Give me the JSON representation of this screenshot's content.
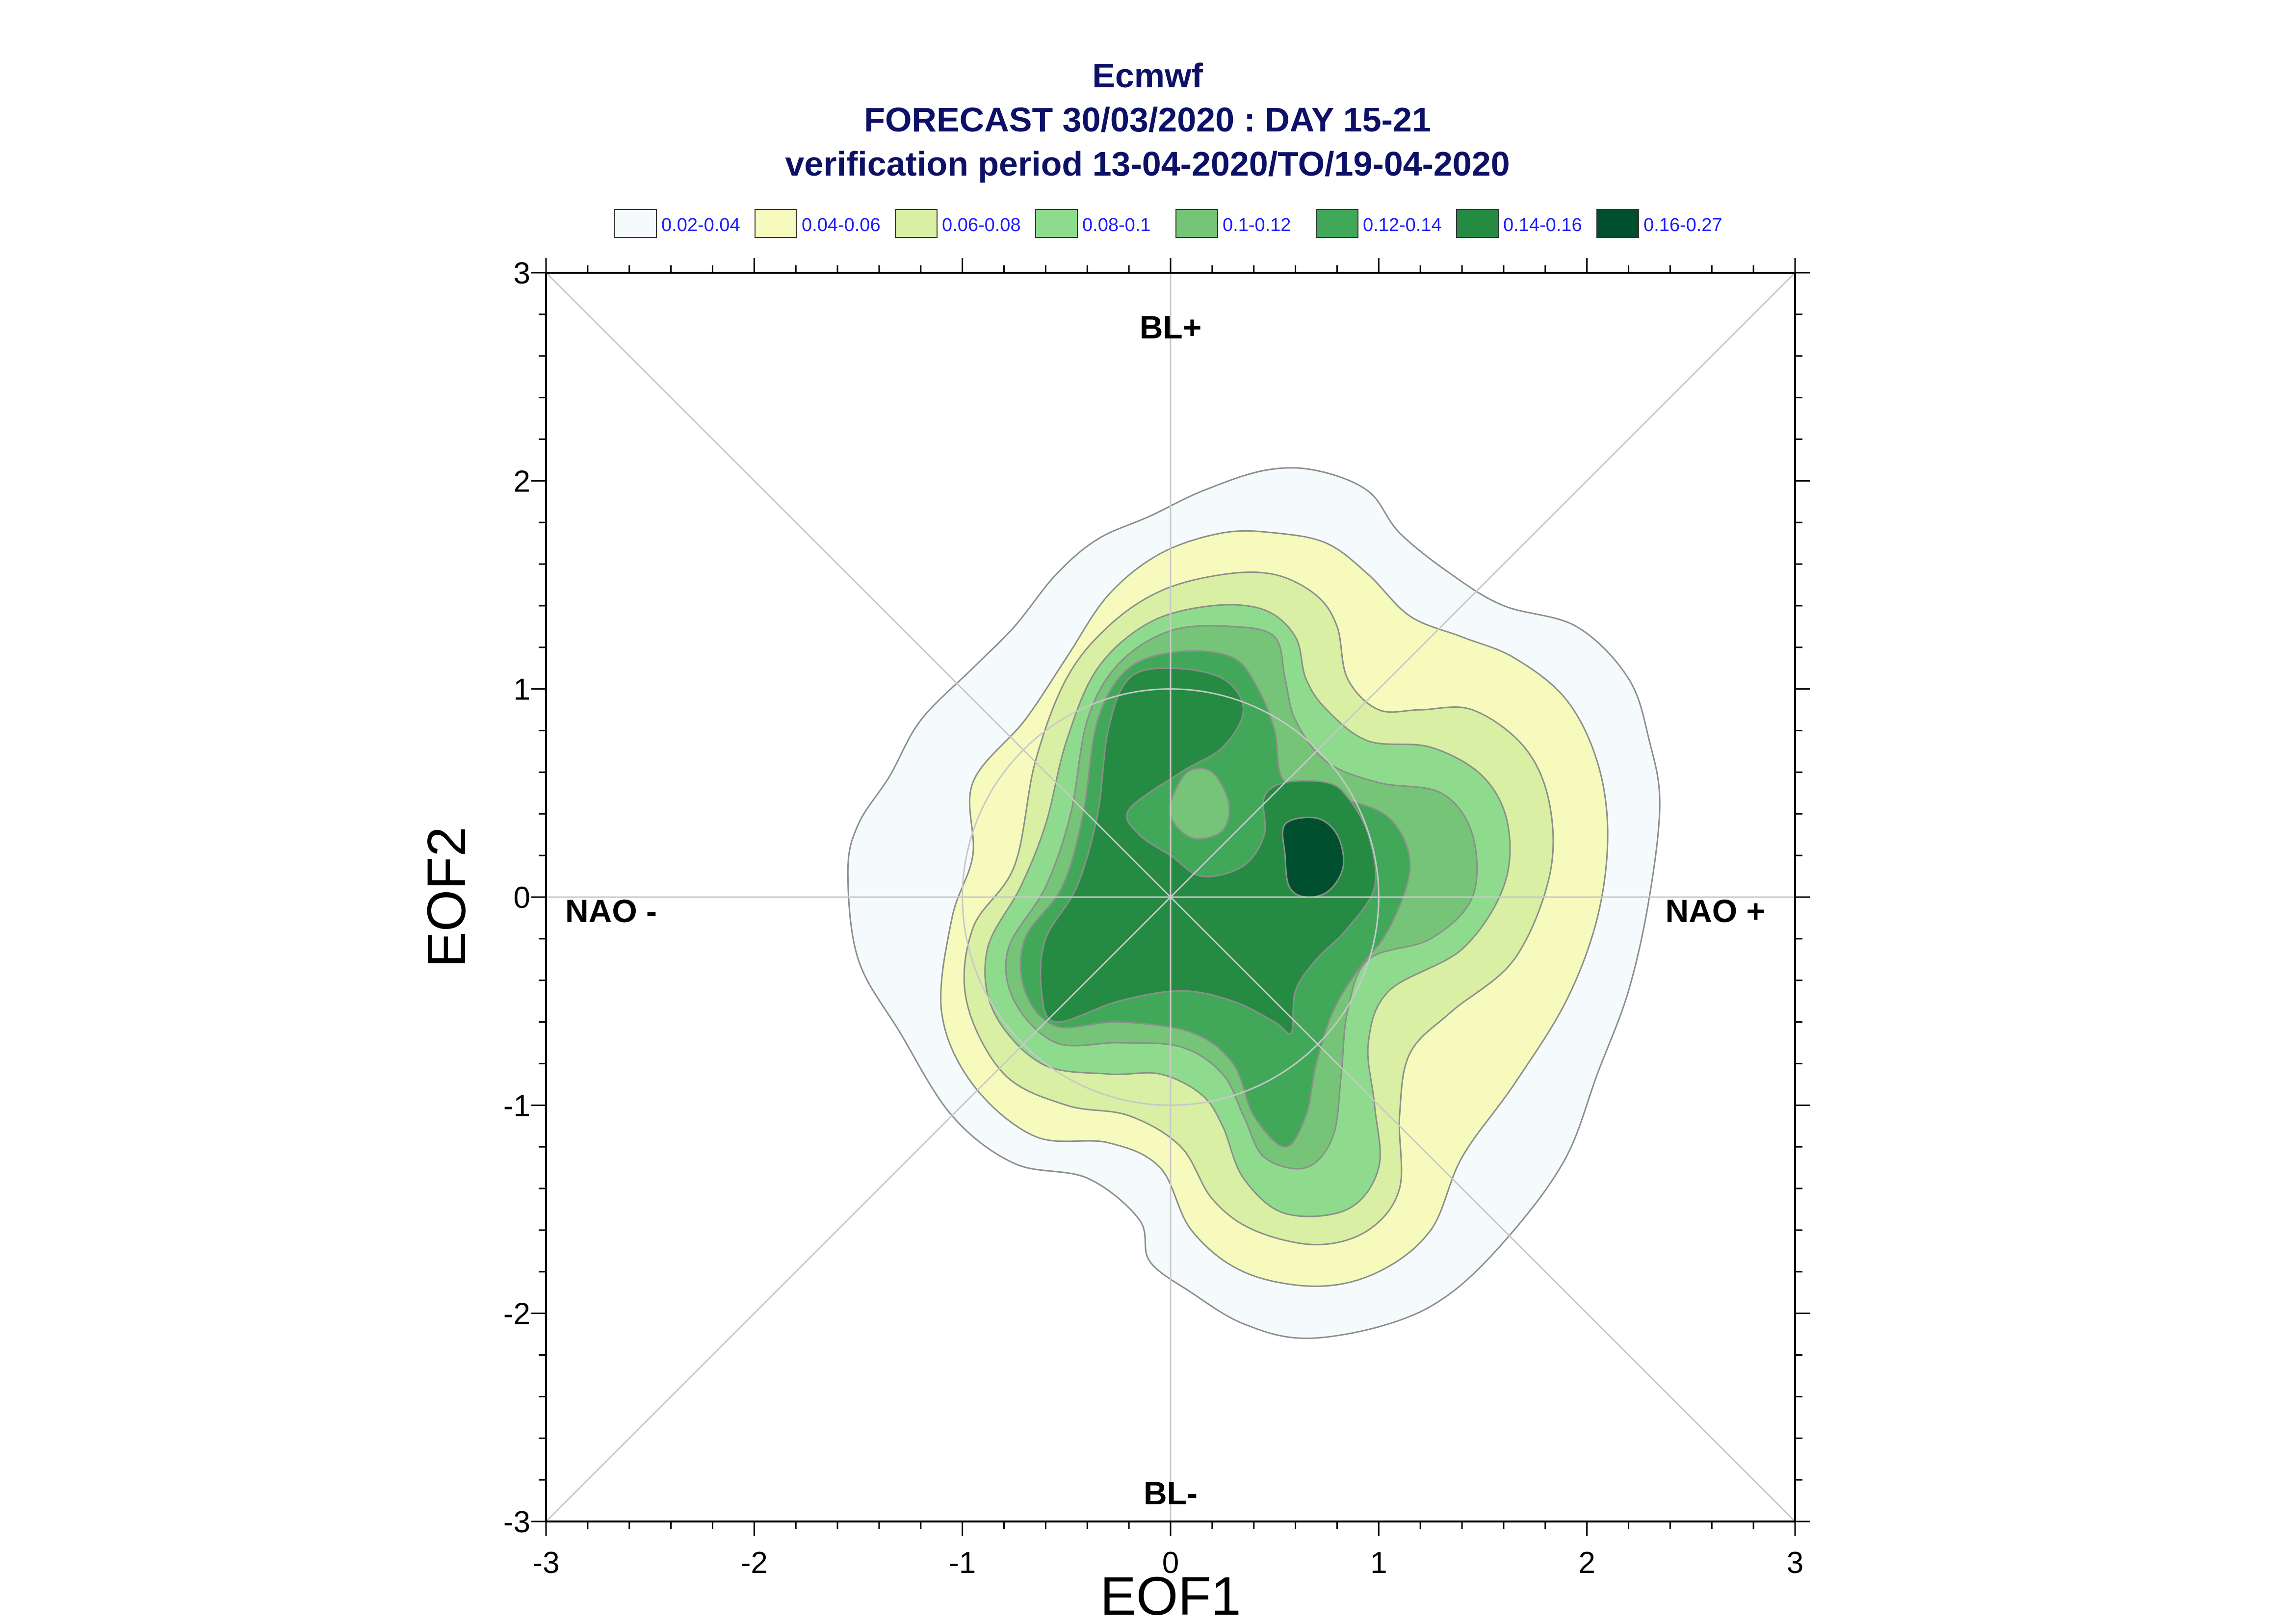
{
  "chart_data": {
    "type": "contour",
    "title": "Ecmwf",
    "subtitle_1": "FORECAST 30/03/2020 : DAY 15-21",
    "subtitle_2": "verification period 13-04-2020/TO/19-04-2020",
    "xlabel": "EOF1",
    "ylabel": "EOF2",
    "xlim": [
      -3,
      3
    ],
    "ylim": [
      -3,
      3
    ],
    "x_ticks": [
      "-3",
      "-2",
      "-1",
      "0",
      "1",
      "2",
      "3"
    ],
    "y_ticks": [
      "3",
      "2",
      "1",
      "0",
      "-1",
      "-2",
      "-3"
    ],
    "grid": false,
    "legend_position": "top",
    "regimes": {
      "top": "BL+",
      "bottom": "BL-",
      "left": "NAO -",
      "right": "NAO +"
    },
    "levels": [
      {
        "label": "0.02-0.04",
        "color": "#f5fafc"
      },
      {
        "label": "0.04-0.06",
        "color": "#f6fbbd"
      },
      {
        "label": "0.06-0.08",
        "color": "#d9efa3"
      },
      {
        "label": "0.08-0.1",
        "color": "#8fdb8d"
      },
      {
        "label": "0.1-0.12",
        "color": "#76c477"
      },
      {
        "label": "0.12-0.14",
        "color": "#41a85a"
      },
      {
        "label": "0.14-0.16",
        "color": "#258a42"
      },
      {
        "label": "0.16-0.27",
        "color": "#004f2e"
      }
    ],
    "contours": [
      {
        "level": 0,
        "points": [
          [
            -1.55,
            0.12
          ],
          [
            -1.5,
            0.35
          ],
          [
            -1.35,
            0.58
          ],
          [
            -1.2,
            0.85
          ],
          [
            -0.95,
            1.1
          ],
          [
            -0.75,
            1.3
          ],
          [
            -0.55,
            1.55
          ],
          [
            -0.35,
            1.72
          ],
          [
            -0.1,
            1.83
          ],
          [
            0.15,
            1.95
          ],
          [
            0.45,
            2.05
          ],
          [
            0.7,
            2.05
          ],
          [
            0.95,
            1.95
          ],
          [
            1.1,
            1.75
          ],
          [
            1.35,
            1.55
          ],
          [
            1.6,
            1.4
          ],
          [
            1.95,
            1.3
          ],
          [
            2.2,
            1.05
          ],
          [
            2.3,
            0.75
          ],
          [
            2.35,
            0.45
          ],
          [
            2.3,
            0.0
          ],
          [
            2.2,
            -0.45
          ],
          [
            2.05,
            -0.85
          ],
          [
            1.9,
            -1.25
          ],
          [
            1.65,
            -1.6
          ],
          [
            1.35,
            -1.9
          ],
          [
            1.05,
            -2.05
          ],
          [
            0.65,
            -2.12
          ],
          [
            0.35,
            -2.05
          ],
          [
            0.1,
            -1.9
          ],
          [
            -0.1,
            -1.75
          ],
          [
            -0.15,
            -1.55
          ],
          [
            -0.4,
            -1.35
          ],
          [
            -0.75,
            -1.28
          ],
          [
            -1.05,
            -1.05
          ],
          [
            -1.3,
            -0.65
          ],
          [
            -1.5,
            -0.3
          ]
        ]
      },
      {
        "level": 1,
        "points": [
          [
            -0.95,
            0.55
          ],
          [
            -0.7,
            0.85
          ],
          [
            -0.5,
            1.15
          ],
          [
            -0.3,
            1.45
          ],
          [
            -0.05,
            1.65
          ],
          [
            0.25,
            1.75
          ],
          [
            0.5,
            1.75
          ],
          [
            0.75,
            1.7
          ],
          [
            0.95,
            1.55
          ],
          [
            1.15,
            1.35
          ],
          [
            1.4,
            1.25
          ],
          [
            1.65,
            1.15
          ],
          [
            1.9,
            0.95
          ],
          [
            2.05,
            0.65
          ],
          [
            2.1,
            0.3
          ],
          [
            2.05,
            -0.1
          ],
          [
            1.9,
            -0.5
          ],
          [
            1.65,
            -0.9
          ],
          [
            1.4,
            -1.25
          ],
          [
            1.25,
            -1.6
          ],
          [
            1.0,
            -1.8
          ],
          [
            0.7,
            -1.87
          ],
          [
            0.35,
            -1.8
          ],
          [
            0.1,
            -1.6
          ],
          [
            -0.05,
            -1.3
          ],
          [
            -0.3,
            -1.18
          ],
          [
            -0.65,
            -1.15
          ],
          [
            -0.95,
            -0.9
          ],
          [
            -1.1,
            -0.55
          ],
          [
            -1.05,
            -0.1
          ],
          [
            -0.95,
            0.2
          ]
        ]
      },
      {
        "level": 2,
        "points": [
          [
            -0.65,
            0.65
          ],
          [
            -0.5,
            1.05
          ],
          [
            -0.3,
            1.3
          ],
          [
            -0.05,
            1.47
          ],
          [
            0.25,
            1.55
          ],
          [
            0.5,
            1.55
          ],
          [
            0.7,
            1.45
          ],
          [
            0.8,
            1.3
          ],
          [
            0.85,
            1.05
          ],
          [
            1.0,
            0.9
          ],
          [
            1.2,
            0.9
          ],
          [
            1.45,
            0.9
          ],
          [
            1.7,
            0.72
          ],
          [
            1.82,
            0.45
          ],
          [
            1.82,
            0.1
          ],
          [
            1.65,
            -0.3
          ],
          [
            1.35,
            -0.55
          ],
          [
            1.15,
            -0.75
          ],
          [
            1.1,
            -1.05
          ],
          [
            1.1,
            -1.4
          ],
          [
            0.95,
            -1.6
          ],
          [
            0.7,
            -1.67
          ],
          [
            0.4,
            -1.6
          ],
          [
            0.2,
            -1.45
          ],
          [
            0.05,
            -1.2
          ],
          [
            -0.2,
            -1.05
          ],
          [
            -0.5,
            -1.0
          ],
          [
            -0.8,
            -0.85
          ],
          [
            -0.98,
            -0.5
          ],
          [
            -0.95,
            -0.15
          ],
          [
            -0.75,
            0.15
          ]
        ]
      },
      {
        "level": 3,
        "points": [
          [
            -0.5,
            0.75
          ],
          [
            -0.35,
            1.1
          ],
          [
            -0.1,
            1.32
          ],
          [
            0.2,
            1.4
          ],
          [
            0.45,
            1.38
          ],
          [
            0.6,
            1.25
          ],
          [
            0.65,
            1.05
          ],
          [
            0.75,
            0.9
          ],
          [
            0.95,
            0.75
          ],
          [
            1.25,
            0.72
          ],
          [
            1.5,
            0.58
          ],
          [
            1.62,
            0.35
          ],
          [
            1.6,
            0.05
          ],
          [
            1.4,
            -0.25
          ],
          [
            1.05,
            -0.45
          ],
          [
            0.95,
            -0.7
          ],
          [
            0.98,
            -1.0
          ],
          [
            1.0,
            -1.3
          ],
          [
            0.85,
            -1.5
          ],
          [
            0.55,
            -1.52
          ],
          [
            0.35,
            -1.35
          ],
          [
            0.25,
            -1.1
          ],
          [
            0.15,
            -0.95
          ],
          [
            -0.05,
            -0.85
          ],
          [
            -0.3,
            -0.85
          ],
          [
            -0.62,
            -0.8
          ],
          [
            -0.85,
            -0.55
          ],
          [
            -0.88,
            -0.25
          ],
          [
            -0.72,
            0.05
          ],
          [
            -0.6,
            0.35
          ]
        ]
      },
      {
        "level": 4,
        "points": [
          [
            -0.4,
            0.85
          ],
          [
            -0.25,
            1.12
          ],
          [
            0.0,
            1.28
          ],
          [
            0.3,
            1.3
          ],
          [
            0.5,
            1.25
          ],
          [
            0.55,
            1.05
          ],
          [
            0.6,
            0.85
          ],
          [
            0.75,
            0.65
          ],
          [
            1.0,
            0.55
          ],
          [
            1.3,
            0.5
          ],
          [
            1.45,
            0.3
          ],
          [
            1.45,
            0.0
          ],
          [
            1.25,
            -0.2
          ],
          [
            0.95,
            -0.3
          ],
          [
            0.85,
            -0.55
          ],
          [
            0.82,
            -0.85
          ],
          [
            0.78,
            -1.15
          ],
          [
            0.65,
            -1.3
          ],
          [
            0.45,
            -1.25
          ],
          [
            0.35,
            -1.05
          ],
          [
            0.25,
            -0.85
          ],
          [
            0.05,
            -0.72
          ],
          [
            -0.25,
            -0.7
          ],
          [
            -0.55,
            -0.7
          ],
          [
            -0.75,
            -0.5
          ],
          [
            -0.78,
            -0.25
          ],
          [
            -0.6,
            0.05
          ],
          [
            -0.48,
            0.4
          ]
        ]
      },
      {
        "level": 5,
        "points": [
          [
            -0.35,
            0.85
          ],
          [
            -0.2,
            1.1
          ],
          [
            0.05,
            1.18
          ],
          [
            0.3,
            1.15
          ],
          [
            0.42,
            1.0
          ],
          [
            0.5,
            0.8
          ],
          [
            0.55,
            0.55
          ],
          [
            0.8,
            0.48
          ],
          [
            1.05,
            0.38
          ],
          [
            1.15,
            0.15
          ],
          [
            1.05,
            -0.15
          ],
          [
            0.9,
            -0.35
          ],
          [
            0.78,
            -0.55
          ],
          [
            0.7,
            -0.8
          ],
          [
            0.65,
            -1.05
          ],
          [
            0.55,
            -1.2
          ],
          [
            0.4,
            -1.05
          ],
          [
            0.3,
            -0.8
          ],
          [
            0.1,
            -0.65
          ],
          [
            -0.25,
            -0.6
          ],
          [
            -0.55,
            -0.62
          ],
          [
            -0.7,
            -0.45
          ],
          [
            -0.7,
            -0.2
          ],
          [
            -0.52,
            0.05
          ],
          [
            -0.42,
            0.4
          ]
        ]
      },
      {
        "level": 6,
        "points": [
          [
            -0.3,
            0.8
          ],
          [
            -0.2,
            1.05
          ],
          [
            0.0,
            1.1
          ],
          [
            0.25,
            1.05
          ],
          [
            0.35,
            0.9
          ],
          [
            0.25,
            0.72
          ],
          [
            0.05,
            0.6
          ],
          [
            -0.2,
            0.42
          ],
          [
            -0.15,
            0.3
          ],
          [
            0.0,
            0.2
          ],
          [
            0.15,
            0.1
          ],
          [
            0.35,
            0.15
          ],
          [
            0.45,
            0.3
          ],
          [
            0.45,
            0.48
          ],
          [
            0.55,
            0.55
          ],
          [
            0.75,
            0.55
          ],
          [
            0.85,
            0.48
          ],
          [
            0.95,
            0.3
          ],
          [
            0.98,
            0.05
          ],
          [
            0.85,
            -0.15
          ],
          [
            0.7,
            -0.3
          ],
          [
            0.6,
            -0.45
          ],
          [
            0.58,
            -0.65
          ],
          [
            0.5,
            -0.6
          ],
          [
            0.3,
            -0.5
          ],
          [
            0.05,
            -0.45
          ],
          [
            -0.25,
            -0.5
          ],
          [
            -0.55,
            -0.6
          ],
          [
            -0.62,
            -0.45
          ],
          [
            -0.6,
            -0.2
          ],
          [
            -0.45,
            0.05
          ],
          [
            -0.35,
            0.4
          ]
        ]
      },
      {
        "level": 7,
        "points": [
          [
            0.55,
            0.35
          ],
          [
            0.7,
            0.38
          ],
          [
            0.8,
            0.3
          ],
          [
            0.83,
            0.15
          ],
          [
            0.76,
            0.03
          ],
          [
            0.65,
            0.0
          ],
          [
            0.57,
            0.05
          ],
          [
            0.55,
            0.2
          ]
        ]
      },
      {
        "level": 4,
        "points": [
          [
            0.0,
            0.45
          ],
          [
            0.08,
            0.6
          ],
          [
            0.2,
            0.6
          ],
          [
            0.28,
            0.45
          ],
          [
            0.25,
            0.32
          ],
          [
            0.12,
            0.28
          ],
          [
            0.02,
            0.35
          ]
        ]
      }
    ]
  }
}
